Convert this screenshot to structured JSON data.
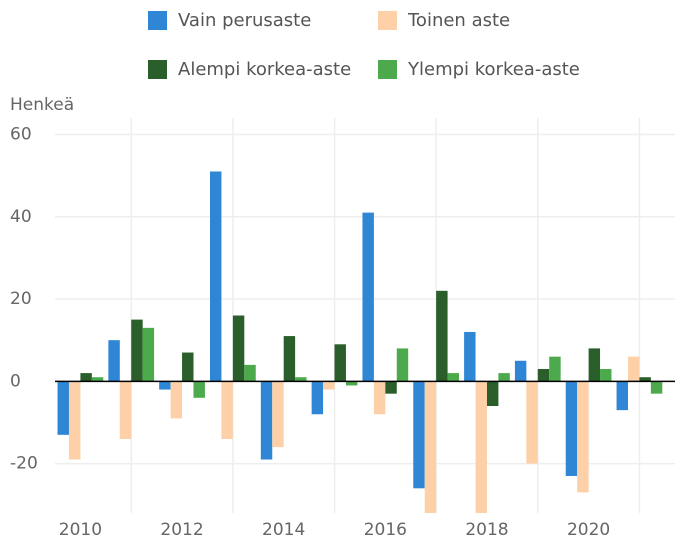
{
  "chart_data": {
    "type": "bar",
    "ylabel": "Henkeä",
    "x": [
      2010,
      2011,
      2012,
      2013,
      2014,
      2015,
      2016,
      2017,
      2018,
      2019,
      2020,
      2021
    ],
    "xlim": [
      2009.5,
      2021.7
    ],
    "xticks": [
      2010,
      2012,
      2014,
      2016,
      2018,
      2020
    ],
    "ylim": [
      -32,
      64
    ],
    "yticks": [
      -20,
      0,
      20,
      40,
      60
    ],
    "grid": true,
    "series": [
      {
        "name": "Vain perusaste",
        "color": "#2e86d4",
        "values": [
          -13,
          10,
          -2,
          51,
          -19,
          -8,
          41,
          -26,
          12,
          5,
          -23,
          -7
        ]
      },
      {
        "name": "Toinen aste",
        "color": "#fdd0a8",
        "values": [
          -19,
          -14,
          -9,
          -14,
          -16,
          -2,
          -8,
          -34,
          -34,
          -20,
          -27,
          6
        ]
      },
      {
        "name": "Alempi korkea-aste",
        "color": "#2a5e2a",
        "values": [
          2,
          15,
          7,
          16,
          11,
          9,
          -3,
          22,
          -6,
          3,
          8,
          1
        ]
      },
      {
        "name": "Ylempi korkea-aste",
        "color": "#4caa4c",
        "values": [
          1,
          13,
          -4,
          4,
          1,
          -1,
          8,
          2,
          2,
          6,
          3,
          -3
        ]
      }
    ]
  }
}
